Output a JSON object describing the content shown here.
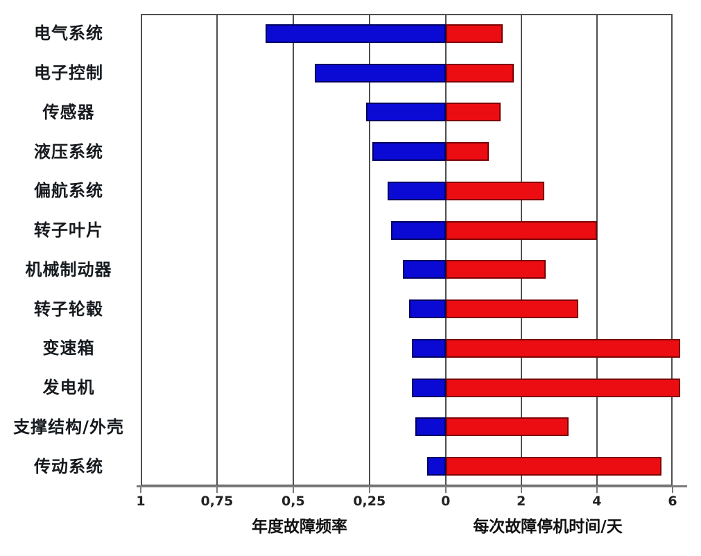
{
  "chart_data": {
    "type": "bar",
    "variant": "diverging-horizontal",
    "title": "",
    "categories": [
      "电气系统",
      "电子控制",
      "传感器",
      "液压系统",
      "偏航系统",
      "转子叶片",
      "机械制动器",
      "转子轮毂",
      "变速箱",
      "发电机",
      "支撑结构/外壳",
      "传动系统"
    ],
    "series": [
      {
        "name": "年度故障频率",
        "direction": "left",
        "color": "#0a0ad4",
        "border_color": "#020260",
        "values": [
          0.59,
          0.43,
          0.26,
          0.24,
          0.19,
          0.18,
          0.14,
          0.12,
          0.11,
          0.11,
          0.1,
          0.06
        ]
      },
      {
        "name": "每次故障停机时间/天",
        "direction": "right",
        "color": "#ec0d12",
        "border_color": "#7c0404",
        "values": [
          1.5,
          1.8,
          1.45,
          1.15,
          2.6,
          4.0,
          2.65,
          3.5,
          6.2,
          6.2,
          3.25,
          5.7
        ]
      }
    ],
    "left_axis": {
      "label": "年度故障频率",
      "range": [
        1,
        0
      ],
      "ticks": [
        {
          "value": 1,
          "label": "1"
        },
        {
          "value": 0.75,
          "label": "0,75"
        },
        {
          "value": 0.5,
          "label": "0,5"
        },
        {
          "value": 0.25,
          "label": "0,25"
        },
        {
          "value": 0,
          "label": "0"
        }
      ]
    },
    "right_axis": {
      "label": "每次故障停机时间/天",
      "range": [
        0,
        6
      ],
      "ticks": [
        {
          "value": 2,
          "label": "2"
        },
        {
          "value": 4,
          "label": "4"
        },
        {
          "value": 6,
          "label": "6"
        }
      ]
    },
    "grid": true,
    "legend": "none",
    "colors": {
      "grid": "#4f4f4f",
      "axis": "#7a7a7a",
      "text": "#161a1e",
      "background": "#ffffff"
    }
  }
}
